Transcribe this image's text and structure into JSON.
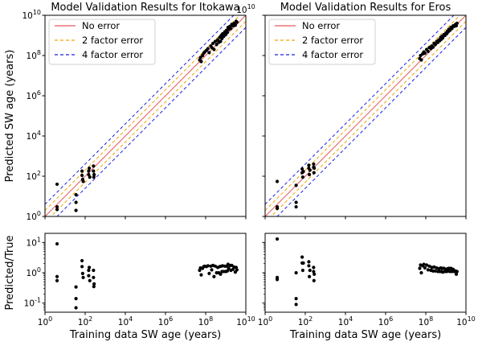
{
  "chart_data": [
    {
      "id": "itokawa_main",
      "type": "scatter",
      "title": "Model Validation Results for Itokawa",
      "ylabel": "Predicted SW age (years)",
      "xlabel": "",
      "xscale": "log",
      "yscale": "log",
      "xlim": [
        1,
        10000000000.0
      ],
      "ylim": [
        1,
        10000000000.0
      ],
      "xticks": [
        {
          "v": 1,
          "e": "0"
        },
        {
          "v": 100,
          "e": "2"
        },
        {
          "v": 10000,
          "e": "4"
        },
        {
          "v": 1000000,
          "e": "6"
        },
        {
          "v": 100000000,
          "e": "8"
        },
        {
          "v": 10000000000,
          "e": "10"
        }
      ],
      "yticks": [
        {
          "v": 1,
          "e": "0"
        },
        {
          "v": 100,
          "e": "2"
        },
        {
          "v": 10000,
          "e": "4"
        },
        {
          "v": 1000000,
          "e": "6"
        },
        {
          "v": 100000000,
          "e": "8"
        },
        {
          "v": 10000000000,
          "e": "10"
        }
      ],
      "legend": [
        {
          "label": "No error",
          "color": "#e8595a",
          "dash": ""
        },
        {
          "label": "2 factor error",
          "color": "#f2a300",
          "dash": "5,3"
        },
        {
          "label": "4 factor error",
          "color": "#1d22d6",
          "dash": "5,3"
        }
      ],
      "legend_position": "upper-left",
      "lines": [
        {
          "name": "No error",
          "factor": 1,
          "color": "#e8595a"
        },
        {
          "name": "2 factor error",
          "factor": 2,
          "color": "#f2a300"
        },
        {
          "name": "2 factor error",
          "factor": 0.5,
          "color": "#f2a300"
        },
        {
          "name": "4 factor error",
          "factor": 4,
          "color": "#1d22d6"
        },
        {
          "name": "4 factor error",
          "factor": 0.25,
          "color": "#1d22d6"
        }
      ],
      "points": [
        [
          4,
          40
        ],
        [
          4,
          3
        ],
        [
          4,
          2.2
        ],
        [
          35,
          12
        ],
        [
          35,
          5
        ],
        [
          35,
          2
        ],
        [
          70,
          110
        ],
        [
          70,
          180
        ],
        [
          75,
          70
        ],
        [
          80,
          55
        ],
        [
          150,
          180
        ],
        [
          150,
          120
        ],
        [
          160,
          250
        ],
        [
          170,
          90
        ],
        [
          260,
          320
        ],
        [
          260,
          180
        ],
        [
          270,
          90
        ],
        [
          280,
          120
        ],
        [
          50000000.0,
          60000000.0
        ],
        [
          55000000.0,
          80000000.0
        ],
        [
          60000000.0,
          50000000.0
        ],
        [
          70000000.0,
          100000000.0
        ],
        [
          80000000.0,
          130000000.0
        ],
        [
          90000000.0,
          150000000.0
        ],
        [
          110000000.0,
          180000000.0
        ],
        [
          130000000.0,
          220000000.0
        ],
        [
          150000000.0,
          140000000.0
        ],
        [
          180000000.0,
          300000000.0
        ],
        [
          200000000.0,
          250000000.0
        ],
        [
          230000000.0,
          400000000.0
        ],
        [
          260000000.0,
          200000000.0
        ],
        [
          300000000.0,
          500000000.0
        ],
        [
          350000000.0,
          350000000.0
        ],
        [
          400000000.0,
          600000000.0
        ],
        [
          450000000.0,
          450000000.0
        ],
        [
          500000000.0,
          800000000.0
        ],
        [
          550000000.0,
          500000000.0
        ],
        [
          600000000.0,
          1000000000.0
        ],
        [
          650000000.0,
          700000000.0
        ],
        [
          700000000.0,
          1200000000.0
        ],
        [
          800000000.0,
          900000000.0
        ],
        [
          900000000.0,
          1500000000.0
        ],
        [
          1000000000.0,
          1100000000.0
        ],
        [
          1100000000.0,
          1800000000.0
        ],
        [
          1200000000.0,
          1400000000.0
        ],
        [
          1300000000.0,
          2500000000.0
        ],
        [
          1400000000.0,
          2000000000.0
        ],
        [
          1600000000.0,
          2800000000.0
        ],
        [
          1800000000.0,
          2200000000.0
        ],
        [
          2000000000.0,
          3500000000.0
        ],
        [
          2300000000.0,
          3000000000.0
        ],
        [
          2600000000.0,
          4000000000.0
        ],
        [
          3000000000.0,
          3200000000.0
        ],
        [
          3300000000.0,
          5000000000.0
        ],
        [
          3600000000.0,
          4500000000.0
        ]
      ]
    },
    {
      "id": "eros_main",
      "type": "scatter",
      "title": "Model Validation Results for Eros",
      "xlabel": "",
      "ylabel": "",
      "xscale": "log",
      "yscale": "log",
      "xlim": [
        1,
        10000000000.0
      ],
      "ylim": [
        1,
        10000000000.0
      ],
      "xticks": [],
      "yticks": [],
      "legend": [
        {
          "label": "No error",
          "color": "#e8595a",
          "dash": ""
        },
        {
          "label": "2 factor error",
          "color": "#f2a300",
          "dash": "5,3"
        },
        {
          "label": "4 factor error",
          "color": "#1d22d6",
          "dash": "5,3"
        }
      ],
      "legend_position": "upper-left",
      "lines": [
        {
          "name": "No error",
          "factor": 1,
          "color": "#e8595a"
        },
        {
          "name": "2 factor error",
          "factor": 2,
          "color": "#f2a300"
        },
        {
          "name": "2 factor error",
          "factor": 0.5,
          "color": "#f2a300"
        },
        {
          "name": "4 factor error",
          "factor": 4,
          "color": "#1d22d6"
        },
        {
          "name": "4 factor error",
          "factor": 0.25,
          "color": "#1d22d6"
        }
      ],
      "points": [
        [
          4,
          55
        ],
        [
          4,
          3
        ],
        [
          4,
          2.5
        ],
        [
          35,
          35
        ],
        [
          35,
          5
        ],
        [
          35,
          3
        ],
        [
          70,
          150
        ],
        [
          70,
          230
        ],
        [
          75,
          90
        ],
        [
          80,
          170
        ],
        [
          150,
          250
        ],
        [
          150,
          350
        ],
        [
          160,
          120
        ],
        [
          170,
          200
        ],
        [
          260,
          400
        ],
        [
          260,
          280
        ],
        [
          270,
          150
        ],
        [
          280,
          250
        ],
        [
          50000000.0,
          70000000.0
        ],
        [
          55000000.0,
          100000000.0
        ],
        [
          60000000.0,
          60000000.0
        ],
        [
          70000000.0,
          120000000.0
        ],
        [
          80000000.0,
          150000000.0
        ],
        [
          90000000.0,
          130000000.0
        ],
        [
          110000000.0,
          200000000.0
        ],
        [
          130000000.0,
          160000000.0
        ],
        [
          150000000.0,
          250000000.0
        ],
        [
          180000000.0,
          220000000.0
        ],
        [
          200000000.0,
          300000000.0
        ],
        [
          230000000.0,
          260000000.0
        ],
        [
          260000000.0,
          400000000.0
        ],
        [
          300000000.0,
          350000000.0
        ],
        [
          350000000.0,
          500000000.0
        ],
        [
          400000000.0,
          450000000.0
        ],
        [
          450000000.0,
          600000000.0
        ],
        [
          500000000.0,
          550000000.0
        ],
        [
          550000000.0,
          800000000.0
        ],
        [
          600000000.0,
          650000000.0
        ],
        [
          650000000.0,
          900000000.0
        ],
        [
          700000000.0,
          750000000.0
        ],
        [
          800000000.0,
          1100000000.0
        ],
        [
          900000000.0,
          1000000000.0
        ],
        [
          1000000000.0,
          1300000000.0
        ],
        [
          1100000000.0,
          1200000000.0
        ],
        [
          1200000000.0,
          1600000000.0
        ],
        [
          1300000000.0,
          1500000000.0
        ],
        [
          1400000000.0,
          2000000000.0
        ],
        [
          1600000000.0,
          1800000000.0
        ],
        [
          1800000000.0,
          2500000000.0
        ],
        [
          2000000000.0,
          2200000000.0
        ],
        [
          2300000000.0,
          3000000000.0
        ],
        [
          2600000000.0,
          2800000000.0
        ],
        [
          3000000000.0,
          3500000000.0
        ],
        [
          3300000000.0,
          3000000000.0
        ],
        [
          3600000000.0,
          4000000000.0
        ]
      ]
    },
    {
      "id": "itokawa_ratio",
      "type": "scatter",
      "ylabel": "Predicted/True",
      "xlabel": "Training data SW age (years)",
      "xscale": "log",
      "yscale": "log",
      "xlim": [
        1,
        10000000000.0
      ],
      "ylim": [
        0.05,
        20
      ],
      "xticks": [
        {
          "v": 1,
          "e": "0"
        },
        {
          "v": 100,
          "e": "2"
        },
        {
          "v": 10000,
          "e": "4"
        },
        {
          "v": 1000000,
          "e": "6"
        },
        {
          "v": 100000000,
          "e": "8"
        },
        {
          "v": 10000000000,
          "e": "10"
        }
      ],
      "yticks": [
        {
          "v": 0.1,
          "e": "-1"
        },
        {
          "v": 1,
          "e": "0"
        },
        {
          "v": 10,
          "e": "1"
        }
      ],
      "points": [
        [
          4,
          9
        ],
        [
          4,
          0.75
        ],
        [
          4,
          0.55
        ],
        [
          35,
          0.34
        ],
        [
          35,
          0.14
        ],
        [
          35,
          0.07
        ],
        [
          70,
          1.6
        ],
        [
          70,
          2.5
        ],
        [
          75,
          0.95
        ],
        [
          80,
          0.7
        ],
        [
          150,
          1.2
        ],
        [
          150,
          0.8
        ],
        [
          160,
          1.5
        ],
        [
          170,
          0.55
        ],
        [
          260,
          1.2
        ],
        [
          260,
          0.7
        ],
        [
          270,
          0.35
        ],
        [
          280,
          0.43
        ],
        [
          50000000.0,
          1.2
        ],
        [
          55000000.0,
          1.45
        ],
        [
          60000000.0,
          0.85
        ],
        [
          70000000.0,
          1.4
        ],
        [
          80000000.0,
          1.6
        ],
        [
          90000000.0,
          1.65
        ],
        [
          110000000.0,
          1.6
        ],
        [
          130000000.0,
          1.7
        ],
        [
          150000000.0,
          0.95
        ],
        [
          180000000.0,
          1.65
        ],
        [
          200000000.0,
          1.25
        ],
        [
          230000000.0,
          1.75
        ],
        [
          260000000.0,
          0.75
        ],
        [
          300000000.0,
          1.65
        ],
        [
          350000000.0,
          1.0
        ],
        [
          400000000.0,
          1.5
        ],
        [
          450000000.0,
          1.0
        ],
        [
          500000000.0,
          1.6
        ],
        [
          550000000.0,
          0.9
        ],
        [
          600000000.0,
          1.65
        ],
        [
          650000000.0,
          1.1
        ],
        [
          700000000.0,
          1.7
        ],
        [
          800000000.0,
          1.1
        ],
        [
          900000000.0,
          1.65
        ],
        [
          1000000000.0,
          1.1
        ],
        [
          1100000000.0,
          1.65
        ],
        [
          1200000000.0,
          1.15
        ],
        [
          1300000000.0,
          1.9
        ],
        [
          1400000000.0,
          1.4
        ],
        [
          1600000000.0,
          1.75
        ],
        [
          1800000000.0,
          1.2
        ],
        [
          2000000000.0,
          1.75
        ],
        [
          2300000000.0,
          1.3
        ],
        [
          2600000000.0,
          1.55
        ],
        [
          3000000000.0,
          1.05
        ],
        [
          3300000000.0,
          1.5
        ],
        [
          3600000000.0,
          1.25
        ]
      ]
    },
    {
      "id": "eros_ratio",
      "type": "scatter",
      "xlabel": "Training data SW age (years)",
      "ylabel": "",
      "xscale": "log",
      "yscale": "log",
      "xlim": [
        1,
        10000000000.0
      ],
      "ylim": [
        0.05,
        20
      ],
      "xticks": [
        {
          "v": 1,
          "e": "0"
        },
        {
          "v": 100,
          "e": "2"
        },
        {
          "v": 10000,
          "e": "4"
        },
        {
          "v": 1000000,
          "e": "6"
        },
        {
          "v": 100000000,
          "e": "8"
        },
        {
          "v": 10000000000,
          "e": "10"
        }
      ],
      "yticks": [],
      "points": [
        [
          4,
          13
        ],
        [
          4,
          0.7
        ],
        [
          4,
          0.6
        ],
        [
          35,
          1.0
        ],
        [
          35,
          0.14
        ],
        [
          35,
          0.09
        ],
        [
          70,
          2.1
        ],
        [
          70,
          3.3
        ],
        [
          75,
          1.2
        ],
        [
          80,
          2.1
        ],
        [
          150,
          1.7
        ],
        [
          150,
          2.3
        ],
        [
          160,
          0.75
        ],
        [
          170,
          1.2
        ],
        [
          260,
          1.5
        ],
        [
          260,
          1.1
        ],
        [
          270,
          0.55
        ],
        [
          280,
          0.9
        ],
        [
          50000000.0,
          1.4
        ],
        [
          55000000.0,
          1.8
        ],
        [
          60000000.0,
          1.0
        ],
        [
          70000000.0,
          1.7
        ],
        [
          80000000.0,
          1.9
        ],
        [
          90000000.0,
          1.45
        ],
        [
          110000000.0,
          1.8
        ],
        [
          130000000.0,
          1.25
        ],
        [
          150000000.0,
          1.65
        ],
        [
          180000000.0,
          1.2
        ],
        [
          200000000.0,
          1.5
        ],
        [
          230000000.0,
          1.15
        ],
        [
          260000000.0,
          1.55
        ],
        [
          300000000.0,
          1.15
        ],
        [
          350000000.0,
          1.45
        ],
        [
          400000000.0,
          1.1
        ],
        [
          450000000.0,
          1.35
        ],
        [
          500000000.0,
          1.1
        ],
        [
          550000000.0,
          1.45
        ],
        [
          600000000.0,
          1.1
        ],
        [
          650000000.0,
          1.4
        ],
        [
          700000000.0,
          1.05
        ],
        [
          800000000.0,
          1.4
        ],
        [
          900000000.0,
          1.1
        ],
        [
          1000000000.0,
          1.3
        ],
        [
          1100000000.0,
          1.1
        ],
        [
          1200000000.0,
          1.35
        ],
        [
          1300000000.0,
          1.15
        ],
        [
          1400000000.0,
          1.4
        ],
        [
          1600000000.0,
          1.1
        ],
        [
          1800000000.0,
          1.4
        ],
        [
          2000000000.0,
          1.1
        ],
        [
          2300000000.0,
          1.3
        ],
        [
          2600000000.0,
          1.1
        ],
        [
          3000000000.0,
          1.15
        ],
        [
          3300000000.0,
          0.9
        ],
        [
          3600000000.0,
          1.1
        ]
      ]
    }
  ]
}
